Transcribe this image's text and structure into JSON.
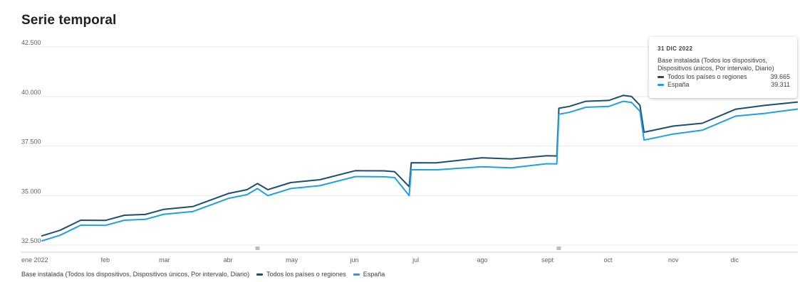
{
  "title": "Serie temporal",
  "colors": {
    "todos": "#1b4f72",
    "espana": "#1fa0e0",
    "grid": "#e8eaed",
    "marker": "#bdbdbd"
  },
  "legend": {
    "metric": "Base instalada (Todos los dispositivos, Dispositivos únicos, Por intervalo, Diario)",
    "items": [
      {
        "label": "Todos los países o regiones",
        "color": "#1b4f72"
      },
      {
        "label": "España",
        "color": "#1fa0e0"
      }
    ]
  },
  "tooltip": {
    "date": "31 DIC 2022",
    "metric": "Base instalada (Todos los dispositivos, Dispositivos únicos, Por intervalo, Diario)",
    "rows": [
      {
        "label": "Todos los países o regiones",
        "value": "39.665",
        "color": "#1b4f72"
      },
      {
        "label": "España",
        "value": "39.311",
        "color": "#1fa0e0"
      }
    ]
  },
  "chart_data": {
    "type": "line",
    "title": "Serie temporal",
    "ylim": [
      32500,
      42500
    ],
    "yticks": [
      32500,
      35000,
      37500,
      40000,
      42500
    ],
    "ytick_labels": [
      "32.500",
      "35.000",
      "37.500",
      "40.000",
      "42.500"
    ],
    "xlim": [
      "2022-01-01",
      "2022-12-31"
    ],
    "xticks": [
      "2022-01-01",
      "2022-02-01",
      "2022-03-01",
      "2022-04-01",
      "2022-05-01",
      "2022-06-01",
      "2022-07-01",
      "2022-08-01",
      "2022-09-01",
      "2022-10-01",
      "2022-11-01",
      "2022-12-01"
    ],
    "xtick_labels": [
      "ene 2022",
      "feb",
      "mar",
      "abr",
      "may",
      "jun",
      "jul",
      "ago",
      "sept",
      "oct",
      "nov",
      "dic"
    ],
    "grid": true,
    "legend_position": "bottom-left",
    "markers": [
      "2022-04-15",
      "2022-09-07"
    ],
    "series": [
      {
        "name": "Todos los países o regiones",
        "color": "#1b4f72",
        "x": [
          "2022-01-01",
          "2022-01-10",
          "2022-01-20",
          "2022-02-01",
          "2022-02-10",
          "2022-02-20",
          "2022-03-01",
          "2022-03-15",
          "2022-04-01",
          "2022-04-10",
          "2022-04-15",
          "2022-04-20",
          "2022-05-01",
          "2022-05-15",
          "2022-06-01",
          "2022-06-15",
          "2022-06-20",
          "2022-06-27",
          "2022-06-28",
          "2022-07-10",
          "2022-08-01",
          "2022-08-15",
          "2022-09-01",
          "2022-09-06",
          "2022-09-07",
          "2022-09-12",
          "2022-09-20",
          "2022-10-01",
          "2022-10-08",
          "2022-10-12",
          "2022-10-16",
          "2022-10-18",
          "2022-11-01",
          "2022-11-15",
          "2022-12-01",
          "2022-12-15",
          "2022-12-31"
        ],
        "y": [
          32900,
          33300,
          33700,
          33800,
          33950,
          34100,
          34250,
          34500,
          35050,
          35350,
          35550,
          35350,
          35600,
          35850,
          36200,
          36300,
          36150,
          35500,
          36600,
          36700,
          36850,
          36900,
          36950,
          37050,
          39350,
          39550,
          39700,
          39850,
          40000,
          40050,
          39500,
          38250,
          38450,
          38700,
          39300,
          39600,
          39665
        ]
      },
      {
        "name": "España",
        "color": "#1fa0e0",
        "x": [
          "2022-01-01",
          "2022-01-10",
          "2022-01-20",
          "2022-02-01",
          "2022-02-10",
          "2022-02-20",
          "2022-03-01",
          "2022-03-15",
          "2022-04-01",
          "2022-04-10",
          "2022-04-15",
          "2022-04-20",
          "2022-05-01",
          "2022-05-15",
          "2022-06-01",
          "2022-06-15",
          "2022-06-20",
          "2022-06-27",
          "2022-06-28",
          "2022-07-10",
          "2022-08-01",
          "2022-08-15",
          "2022-09-01",
          "2022-09-06",
          "2022-09-07",
          "2022-09-12",
          "2022-09-20",
          "2022-10-01",
          "2022-10-08",
          "2022-10-12",
          "2022-10-16",
          "2022-10-18",
          "2022-11-01",
          "2022-11-15",
          "2022-12-01",
          "2022-12-15",
          "2022-12-31"
        ],
        "y": [
          32650,
          33050,
          33450,
          33550,
          33700,
          33850,
          34000,
          34250,
          34800,
          35100,
          35300,
          35050,
          35300,
          35550,
          35900,
          36000,
          35850,
          35050,
          36250,
          36350,
          36400,
          36450,
          36550,
          36650,
          39050,
          39250,
          39400,
          39550,
          39700,
          39750,
          39200,
          37850,
          38050,
          38350,
          38950,
          39200,
          39311
        ]
      }
    ]
  }
}
